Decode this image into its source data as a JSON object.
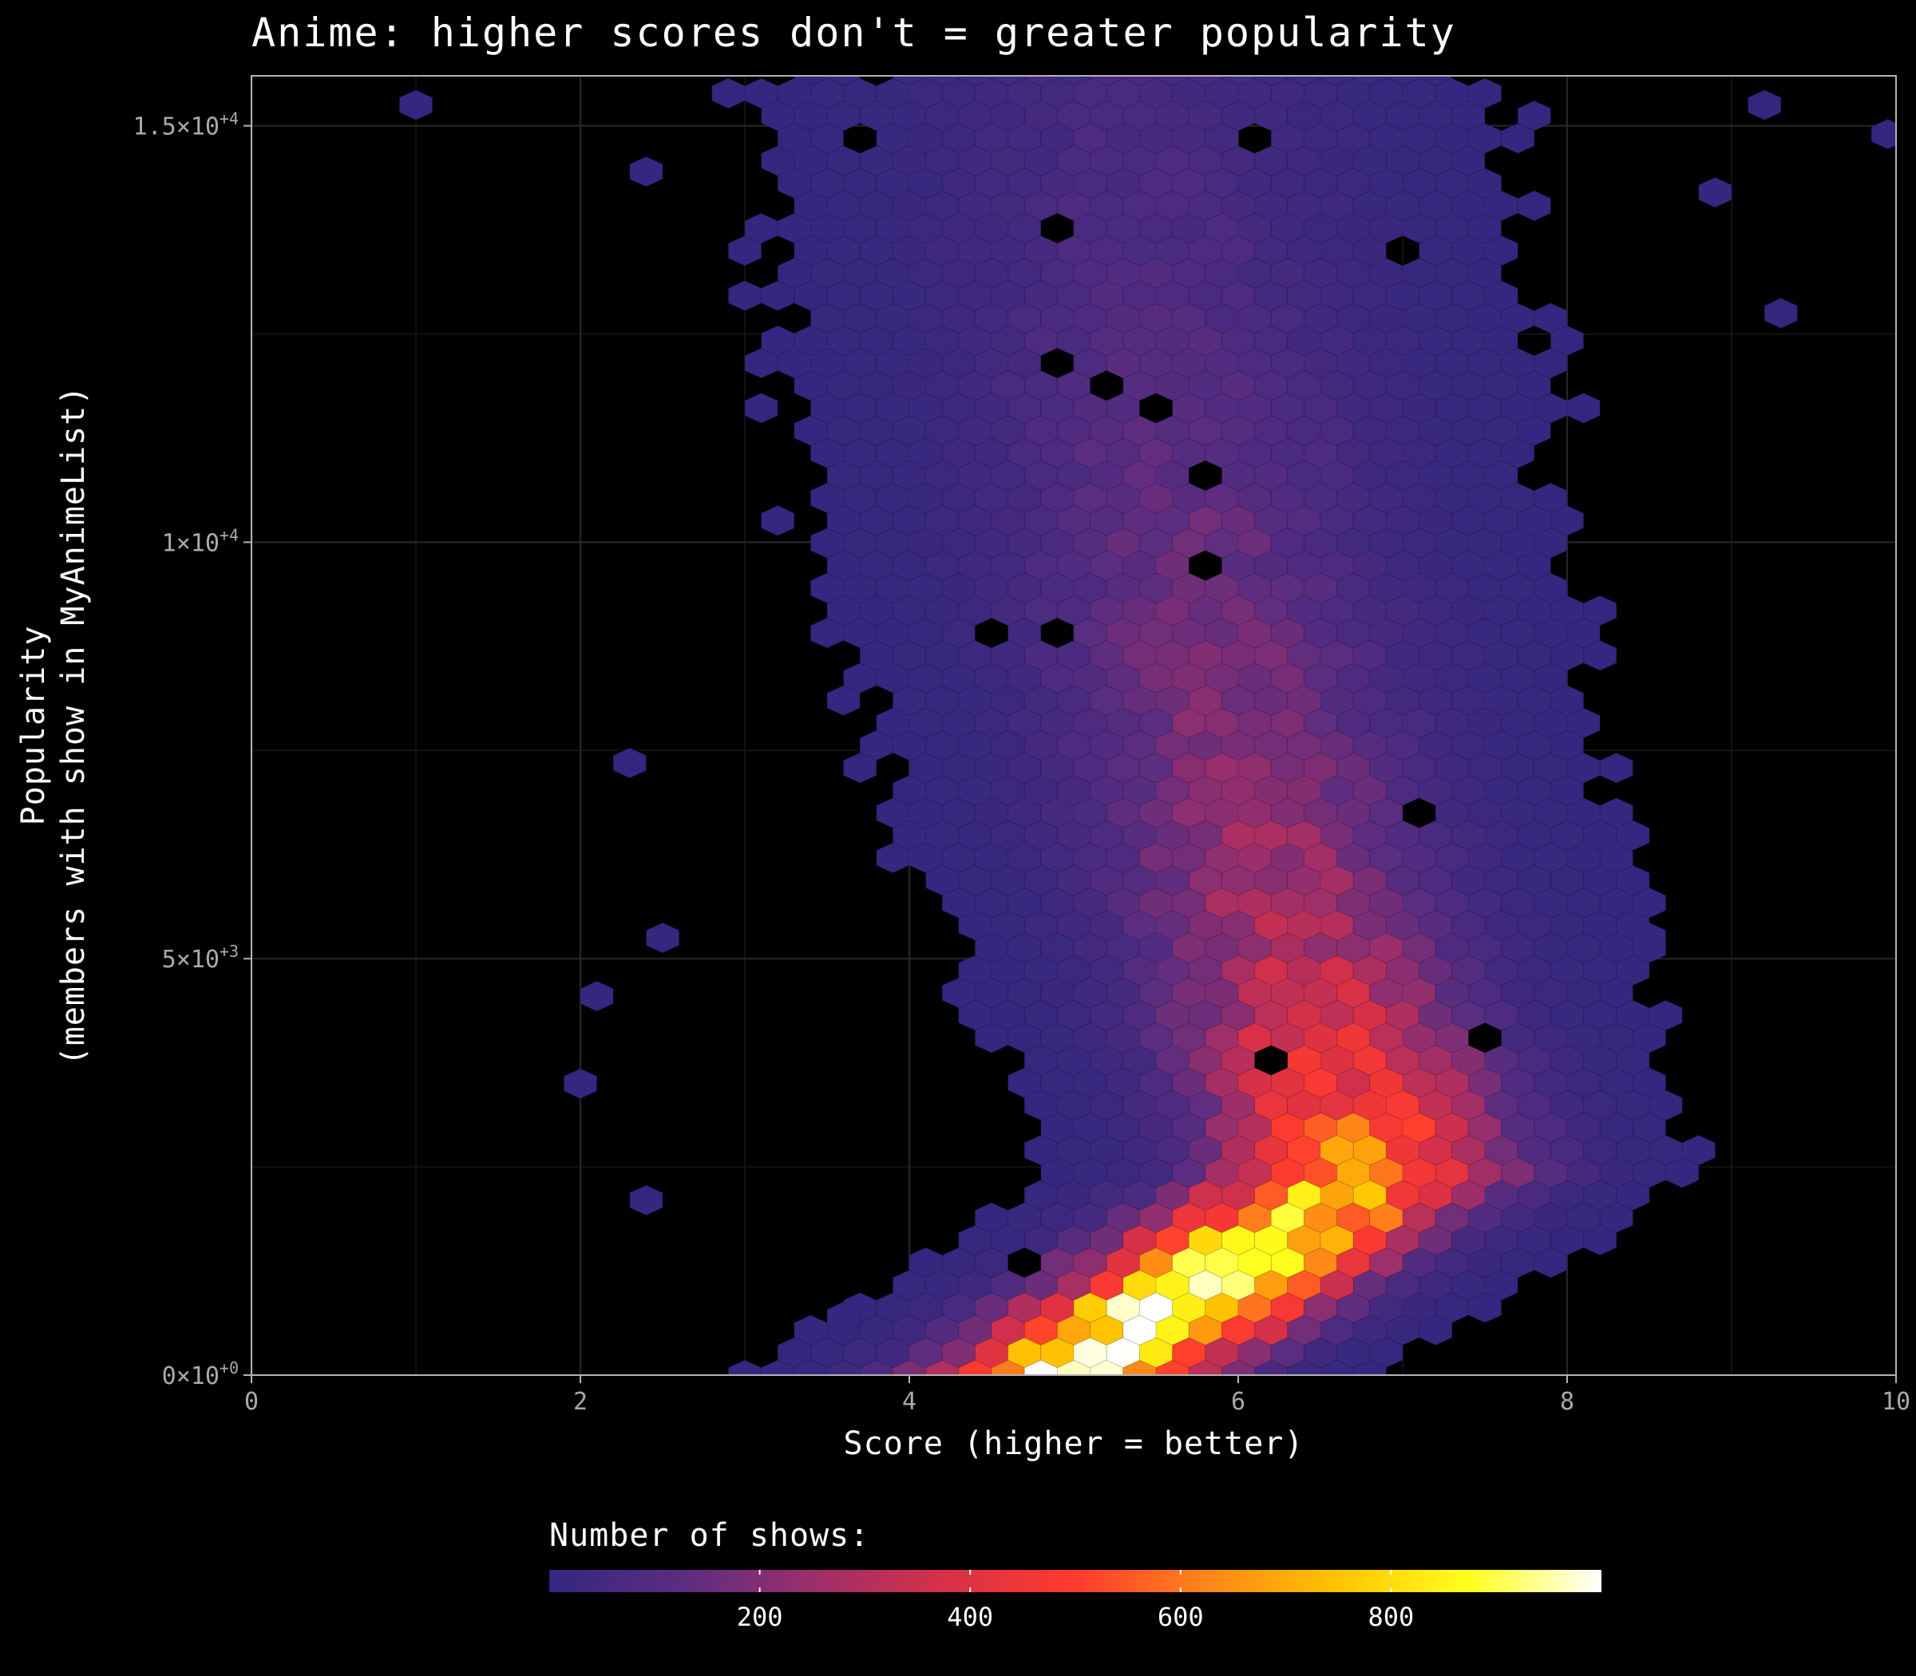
{
  "chart_data": {
    "type": "hexbin",
    "title": "Anime: higher scores don't = greater popularity",
    "xlabel": "Score (higher = better)",
    "ylabel_line1": "Popularity",
    "ylabel_line2": "(members with show in MyAnimeList)",
    "xlim": [
      0,
      10
    ],
    "ylim": [
      0,
      15600
    ],
    "x_ticks": [
      {
        "value": 0,
        "label": "0"
      },
      {
        "value": 2,
        "label": "2"
      },
      {
        "value": 4,
        "label": "4"
      },
      {
        "value": 6,
        "label": "6"
      },
      {
        "value": 8,
        "label": "8"
      },
      {
        "value": 10,
        "label": "10"
      }
    ],
    "y_ticks": [
      {
        "value": 0,
        "mantissa": "0",
        "exponent": "+0"
      },
      {
        "value": 5000,
        "mantissa": "5",
        "exponent": "+3"
      },
      {
        "value": 10000,
        "mantissa": "1",
        "exponent": "+4"
      },
      {
        "value": 15000,
        "mantissa": "1.5",
        "exponent": "+4"
      }
    ],
    "grid": true,
    "background": "#000000",
    "legend": {
      "title": "Number of shows:",
      "position": "bottom",
      "range": [
        0,
        1000
      ],
      "ticks": [
        {
          "value": 200,
          "label": "200"
        },
        {
          "value": 400,
          "label": "400"
        },
        {
          "value": 600,
          "label": "600"
        },
        {
          "value": 800,
          "label": "800"
        }
      ],
      "colors": [
        "#34277f",
        "#5a2d80",
        "#9b2f6b",
        "#d63048",
        "#ff3b2f",
        "#ff8519",
        "#ffc400",
        "#ffff1f",
        "#ffffff"
      ]
    },
    "density_model": {
      "score_center": [
        [
          0,
          5.0
        ],
        [
          2500,
          6.8
        ],
        [
          6000,
          6.2
        ],
        [
          10000,
          5.7
        ],
        [
          15600,
          5.3
        ]
      ],
      "score_spread": [
        [
          0,
          0.95
        ],
        [
          3000,
          1.05
        ],
        [
          7000,
          1.25
        ],
        [
          12000,
          1.45
        ],
        [
          15600,
          1.5
        ]
      ],
      "peak_count": [
        [
          0,
          1000
        ],
        [
          1500,
          900
        ],
        [
          3000,
          520
        ],
        [
          5000,
          300
        ],
        [
          7500,
          200
        ],
        [
          10000,
          150
        ],
        [
          13000,
          90
        ],
        [
          15600,
          60
        ]
      ]
    },
    "outliers": [
      {
        "x": 1.0,
        "y": 15250,
        "count": 1
      },
      {
        "x": 9.2,
        "y": 15250,
        "count": 1
      },
      {
        "x": 9.95,
        "y": 14900,
        "count": 1
      },
      {
        "x": 9.3,
        "y": 12750,
        "count": 1
      },
      {
        "x": 2.4,
        "y": 14450,
        "count": 1
      },
      {
        "x": 2.3,
        "y": 7350,
        "count": 1
      },
      {
        "x": 2.5,
        "y": 5250,
        "count": 1
      },
      {
        "x": 2.1,
        "y": 4550,
        "count": 1
      },
      {
        "x": 2.0,
        "y": 3500,
        "count": 1
      },
      {
        "x": 2.4,
        "y": 2100,
        "count": 1
      },
      {
        "x": 3.6,
        "y": 700,
        "count": 1
      },
      {
        "x": 8.5,
        "y": 5250,
        "count": 1
      },
      {
        "x": 8.9,
        "y": 14200,
        "count": 1
      }
    ]
  }
}
